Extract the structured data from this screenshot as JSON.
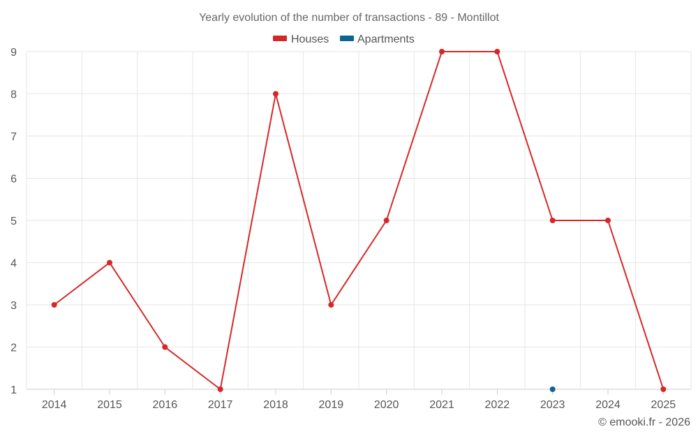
{
  "chart_data": {
    "type": "line",
    "title": "Yearly evolution of the number of transactions - 89 - Montillot",
    "categories": [
      "2014",
      "2015",
      "2016",
      "2017",
      "2018",
      "2019",
      "2020",
      "2021",
      "2022",
      "2023",
      "2024",
      "2025"
    ],
    "series": [
      {
        "name": "Houses",
        "color": "#d62728",
        "values": [
          3,
          4,
          2,
          1,
          8,
          3,
          5,
          9,
          9,
          5,
          5,
          1
        ]
      },
      {
        "name": "Apartments",
        "color": "#0b6496",
        "values": [
          null,
          null,
          null,
          null,
          null,
          null,
          null,
          null,
          null,
          1,
          null,
          null
        ]
      }
    ],
    "yticks": [
      "1",
      "2",
      "3",
      "4",
      "5",
      "6",
      "7",
      "8",
      "9"
    ],
    "ylim": [
      1,
      9
    ],
    "legend_position": "top-center",
    "grid": true,
    "xlabel": "",
    "ylabel": ""
  },
  "credit": "© emooki.fr - 2026"
}
